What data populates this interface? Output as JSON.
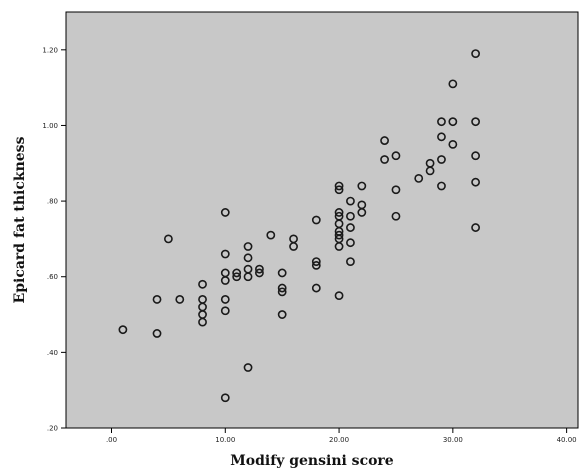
{
  "chart_data": {
    "type": "scatter",
    "xlabel": "Modify gensini score",
    "ylabel": "Epicard fat thickness",
    "xlim": [
      -4,
      41
    ],
    "ylim": [
      0.2,
      1.3
    ],
    "x_ticks": [
      0,
      10,
      20,
      30,
      40
    ],
    "x_tick_labels": [
      ".00",
      "10.00",
      "20.00",
      "30.00",
      "40.00"
    ],
    "y_ticks": [
      0.2,
      0.4,
      0.6,
      0.8,
      1.0,
      1.2
    ],
    "y_tick_labels": [
      ".20",
      ".40",
      ".60",
      ".80",
      "1.00",
      "1.20"
    ],
    "plot_background": "#c8c8c8",
    "marker_color": "#1a1a1a",
    "grid": false,
    "points": [
      [
        1,
        0.46
      ],
      [
        4,
        0.45
      ],
      [
        4,
        0.54
      ],
      [
        5,
        0.7
      ],
      [
        6,
        0.54
      ],
      [
        8,
        0.58
      ],
      [
        8,
        0.54
      ],
      [
        8,
        0.52
      ],
      [
        8,
        0.5
      ],
      [
        8,
        0.48
      ],
      [
        10,
        0.77
      ],
      [
        10,
        0.66
      ],
      [
        10,
        0.61
      ],
      [
        10,
        0.59
      ],
      [
        10,
        0.54
      ],
      [
        10,
        0.51
      ],
      [
        10,
        0.28
      ],
      [
        11,
        0.61
      ],
      [
        11,
        0.6
      ],
      [
        12,
        0.68
      ],
      [
        12,
        0.65
      ],
      [
        12,
        0.62
      ],
      [
        12,
        0.6
      ],
      [
        12,
        0.36
      ],
      [
        13,
        0.62
      ],
      [
        13,
        0.61
      ],
      [
        14,
        0.71
      ],
      [
        15,
        0.61
      ],
      [
        15,
        0.57
      ],
      [
        15,
        0.56
      ],
      [
        15,
        0.5
      ],
      [
        16,
        0.7
      ],
      [
        16,
        0.68
      ],
      [
        18,
        0.75
      ],
      [
        18,
        0.64
      ],
      [
        18,
        0.63
      ],
      [
        18,
        0.57
      ],
      [
        20,
        0.84
      ],
      [
        20,
        0.83
      ],
      [
        20,
        0.77
      ],
      [
        20,
        0.76
      ],
      [
        20,
        0.74
      ],
      [
        20,
        0.72
      ],
      [
        20,
        0.71
      ],
      [
        20,
        0.7
      ],
      [
        20,
        0.68
      ],
      [
        20,
        0.55
      ],
      [
        21,
        0.8
      ],
      [
        21,
        0.76
      ],
      [
        21,
        0.73
      ],
      [
        21,
        0.69
      ],
      [
        21,
        0.64
      ],
      [
        22,
        0.84
      ],
      [
        22,
        0.79
      ],
      [
        22,
        0.77
      ],
      [
        24,
        0.96
      ],
      [
        24,
        0.91
      ],
      [
        25,
        0.92
      ],
      [
        25,
        0.83
      ],
      [
        25,
        0.76
      ],
      [
        27,
        0.86
      ],
      [
        28,
        0.9
      ],
      [
        28,
        0.88
      ],
      [
        29,
        1.01
      ],
      [
        29,
        0.97
      ],
      [
        29,
        0.91
      ],
      [
        29,
        0.84
      ],
      [
        30,
        1.11
      ],
      [
        30,
        1.01
      ],
      [
        30,
        0.95
      ],
      [
        32,
        1.19
      ],
      [
        32,
        1.01
      ],
      [
        32,
        0.92
      ],
      [
        32,
        0.85
      ],
      [
        32,
        0.73
      ]
    ]
  }
}
